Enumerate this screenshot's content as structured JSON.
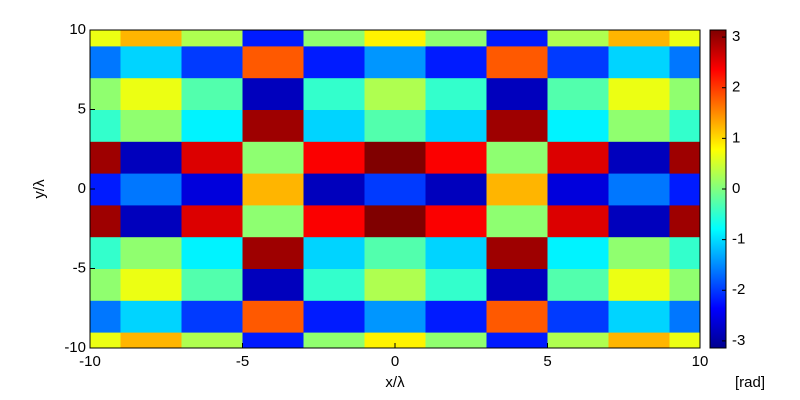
{
  "chart_data": {
    "type": "contour",
    "x_label": "x/λ",
    "y_label": "y/λ",
    "colorbar_label": "[rad]",
    "x": [
      -10,
      -8,
      -6,
      -4,
      -2,
      0,
      2,
      4,
      6,
      8,
      10
    ],
    "y": [
      -10,
      -8,
      -6,
      -4,
      -2,
      0,
      2,
      4,
      6,
      8,
      10
    ],
    "z": [
      [
        0.67,
        1.24,
        0.29,
        -2.19,
        0.1,
        0.86,
        0.1,
        -2.19,
        0.29,
        1.24,
        0.67
      ],
      [
        -1.62,
        -1.05,
        -2.0,
        1.81,
        -2.19,
        -1.43,
        -2.19,
        1.81,
        -2.0,
        -1.05,
        -1.62
      ],
      [
        0.1,
        0.67,
        -0.28,
        -2.76,
        -0.47,
        0.29,
        -0.47,
        -2.76,
        -0.28,
        0.67,
        0.1
      ],
      [
        -0.47,
        0.1,
        -0.86,
        2.95,
        -1.05,
        -0.28,
        -1.05,
        2.95,
        -0.86,
        0.1,
        -0.47
      ],
      [
        2.95,
        -2.76,
        2.57,
        0.09,
        2.38,
        3.14,
        2.38,
        0.09,
        2.57,
        -2.76,
        2.95
      ],
      [
        -2.19,
        -1.62,
        -2.57,
        1.24,
        -2.76,
        -2.0,
        -2.76,
        1.24,
        -2.57,
        -1.62,
        -2.19
      ],
      [
        2.95,
        -2.76,
        2.57,
        0.09,
        2.38,
        3.14,
        2.38,
        0.09,
        2.57,
        -2.76,
        2.95
      ],
      [
        -0.47,
        0.1,
        -0.86,
        2.95,
        -1.05,
        -0.28,
        -1.05,
        2.95,
        -0.86,
        0.1,
        -0.47
      ],
      [
        0.1,
        0.67,
        -0.28,
        -2.76,
        -0.47,
        0.29,
        -0.47,
        -2.76,
        -0.28,
        0.67,
        0.1
      ],
      [
        -1.62,
        -1.05,
        -2.0,
        1.81,
        -2.19,
        -1.43,
        -2.19,
        1.81,
        -2.0,
        -1.05,
        -1.62
      ],
      [
        0.67,
        1.24,
        0.29,
        -2.19,
        0.1,
        0.86,
        0.1,
        -2.19,
        0.29,
        1.24,
        0.67
      ]
    ],
    "xlim": [
      -10,
      10
    ],
    "ylim": [
      -10,
      10
    ],
    "xticks": [
      -10,
      -5,
      0,
      5,
      10
    ],
    "yticks": [
      -10,
      -5,
      0,
      5,
      10
    ],
    "clim": [
      -3.14,
      3.14
    ],
    "cticks": [
      -3,
      -2,
      -1,
      0,
      1,
      2,
      3
    ],
    "colormap": "jet"
  }
}
